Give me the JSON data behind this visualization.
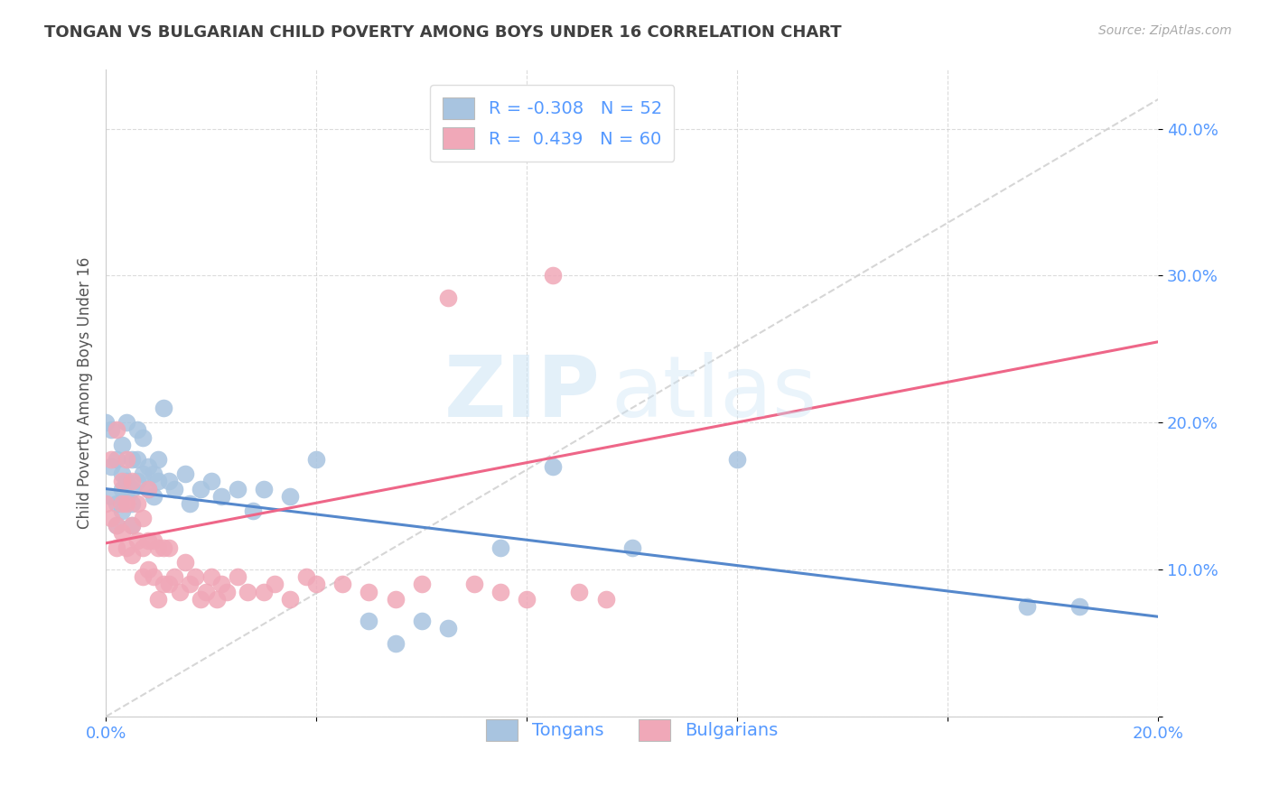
{
  "title": "TONGAN VS BULGARIAN CHILD POVERTY AMONG BOYS UNDER 16 CORRELATION CHART",
  "source": "Source: ZipAtlas.com",
  "ylabel": "Child Poverty Among Boys Under 16",
  "xlim": [
    0.0,
    0.2
  ],
  "ylim": [
    0.0,
    0.44
  ],
  "x_ticks": [
    0.0,
    0.04,
    0.08,
    0.12,
    0.16,
    0.2
  ],
  "x_tick_labels": [
    "0.0%",
    "",
    "",
    "",
    "",
    "20.0%"
  ],
  "y_ticks": [
    0.0,
    0.1,
    0.2,
    0.3,
    0.4
  ],
  "y_tick_labels": [
    "",
    "10.0%",
    "20.0%",
    "30.0%",
    "40.0%"
  ],
  "tongan_color": "#a8c4e0",
  "bulgarian_color": "#f0a8b8",
  "tongan_line_color": "#5588cc",
  "bulgarian_line_color": "#ee6688",
  "tongan_R": -0.308,
  "tongan_N": 52,
  "bulgarian_R": 0.439,
  "bulgarian_N": 60,
  "legend_label_tongan": "Tongans",
  "legend_label_bulgarian": "Bulgarians",
  "watermark_zip": "ZIP",
  "watermark_atlas": "atlas",
  "background_color": "#ffffff",
  "grid_color": "#cccccc",
  "title_color": "#404040",
  "axis_label_color": "#555555",
  "tick_label_color": "#5599ff",
  "source_color": "#aaaaaa",
  "tongan_scatter_x": [
    0.0,
    0.001,
    0.001,
    0.001,
    0.002,
    0.002,
    0.002,
    0.003,
    0.003,
    0.003,
    0.003,
    0.004,
    0.004,
    0.004,
    0.005,
    0.005,
    0.005,
    0.005,
    0.006,
    0.006,
    0.006,
    0.007,
    0.007,
    0.008,
    0.008,
    0.009,
    0.009,
    0.01,
    0.01,
    0.011,
    0.012,
    0.013,
    0.015,
    0.016,
    0.018,
    0.02,
    0.022,
    0.025,
    0.028,
    0.03,
    0.035,
    0.04,
    0.05,
    0.055,
    0.06,
    0.065,
    0.075,
    0.085,
    0.1,
    0.12,
    0.175,
    0.185
  ],
  "tongan_scatter_y": [
    0.2,
    0.15,
    0.17,
    0.195,
    0.13,
    0.145,
    0.175,
    0.14,
    0.155,
    0.165,
    0.185,
    0.15,
    0.16,
    0.2,
    0.13,
    0.145,
    0.155,
    0.175,
    0.16,
    0.175,
    0.195,
    0.165,
    0.19,
    0.155,
    0.17,
    0.15,
    0.165,
    0.16,
    0.175,
    0.21,
    0.16,
    0.155,
    0.165,
    0.145,
    0.155,
    0.16,
    0.15,
    0.155,
    0.14,
    0.155,
    0.15,
    0.175,
    0.065,
    0.05,
    0.065,
    0.06,
    0.115,
    0.17,
    0.115,
    0.175,
    0.075,
    0.075
  ],
  "bulgarian_scatter_x": [
    0.0,
    0.001,
    0.001,
    0.002,
    0.002,
    0.002,
    0.003,
    0.003,
    0.003,
    0.004,
    0.004,
    0.004,
    0.005,
    0.005,
    0.005,
    0.006,
    0.006,
    0.007,
    0.007,
    0.007,
    0.008,
    0.008,
    0.008,
    0.009,
    0.009,
    0.01,
    0.01,
    0.011,
    0.011,
    0.012,
    0.012,
    0.013,
    0.014,
    0.015,
    0.016,
    0.017,
    0.018,
    0.019,
    0.02,
    0.021,
    0.022,
    0.023,
    0.025,
    0.027,
    0.03,
    0.032,
    0.035,
    0.038,
    0.04,
    0.045,
    0.05,
    0.055,
    0.06,
    0.065,
    0.07,
    0.075,
    0.08,
    0.085,
    0.09,
    0.095
  ],
  "bulgarian_scatter_y": [
    0.145,
    0.135,
    0.175,
    0.115,
    0.13,
    0.195,
    0.125,
    0.145,
    0.16,
    0.115,
    0.145,
    0.175,
    0.11,
    0.13,
    0.16,
    0.12,
    0.145,
    0.095,
    0.115,
    0.135,
    0.1,
    0.12,
    0.155,
    0.095,
    0.12,
    0.08,
    0.115,
    0.09,
    0.115,
    0.09,
    0.115,
    0.095,
    0.085,
    0.105,
    0.09,
    0.095,
    0.08,
    0.085,
    0.095,
    0.08,
    0.09,
    0.085,
    0.095,
    0.085,
    0.085,
    0.09,
    0.08,
    0.095,
    0.09,
    0.09,
    0.085,
    0.08,
    0.09,
    0.285,
    0.09,
    0.085,
    0.08,
    0.3,
    0.085,
    0.08
  ]
}
